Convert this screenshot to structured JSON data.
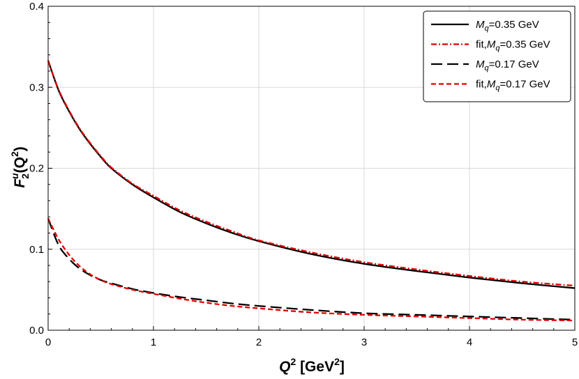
{
  "chart_data": {
    "type": "line",
    "xlabel": {
      "main": "Q",
      "sup": "2",
      "unit_open": " [GeV",
      "unit_sup": "2",
      "unit_close": "]"
    },
    "ylabel": {
      "main": "F",
      "sub": "2",
      "sup_u": "u",
      "arg_open": "(Q",
      "arg_sup": "2",
      "arg_close": ")"
    },
    "xlim": [
      0,
      5
    ],
    "ylim": [
      0,
      0.4
    ],
    "x_ticks": [
      0,
      1,
      2,
      3,
      4,
      5
    ],
    "x_tick_labels": [
      "0",
      "1",
      "2",
      "3",
      "4",
      "5"
    ],
    "y_ticks": [
      0.0,
      0.1,
      0.2,
      0.3,
      0.4
    ],
    "y_tick_labels": [
      "0.0",
      "0.1",
      "0.2",
      "0.3",
      "0.4"
    ],
    "grid": true,
    "legend_position": "top-right",
    "x": [
      0,
      0.1,
      0.2,
      0.3,
      0.4,
      0.5,
      0.6,
      0.8,
      1.0,
      1.25,
      1.5,
      1.75,
      2.0,
      2.5,
      3.0,
      3.5,
      4.0,
      4.5,
      5.0
    ],
    "series": [
      {
        "name": "M_q=0.35 GeV",
        "legend": {
          "pre": "",
          "M": "M",
          "sub": "q",
          "post": "=0.35 GeV"
        },
        "color": "#000000",
        "dash": "solid",
        "values": [
          0.333,
          0.296,
          0.27,
          0.248,
          0.23,
          0.214,
          0.2,
          0.18,
          0.164,
          0.146,
          0.132,
          0.12,
          0.11,
          0.094,
          0.082,
          0.073,
          0.065,
          0.058,
          0.052
        ]
      },
      {
        "name": "fit,M_q=0.35 GeV",
        "legend": {
          "pre": "fit,",
          "M": "M",
          "sub": "q",
          "post": "=0.35 GeV"
        },
        "color": "#e00000",
        "dash": "dashdot",
        "values": [
          0.333,
          0.297,
          0.271,
          0.249,
          0.231,
          0.215,
          0.201,
          0.181,
          0.166,
          0.148,
          0.134,
          0.122,
          0.111,
          0.096,
          0.084,
          0.075,
          0.067,
          0.06,
          0.055
        ]
      },
      {
        "name": "M_q=0.17 GeV",
        "legend": {
          "pre": "",
          "M": "M",
          "sub": "q",
          "post": "=0.17 GeV"
        },
        "color": "#000000",
        "dash": "longdash",
        "values": [
          0.138,
          0.105,
          0.088,
          0.076,
          0.068,
          0.062,
          0.058,
          0.051,
          0.046,
          0.041,
          0.037,
          0.033,
          0.03,
          0.025,
          0.021,
          0.019,
          0.017,
          0.015,
          0.013
        ]
      },
      {
        "name": "fit,M_q=0.17 GeV",
        "legend": {
          "pre": "fit,",
          "M": "M",
          "sub": "q",
          "post": "=0.17 GeV"
        },
        "color": "#e00000",
        "dash": "dashed",
        "values": [
          0.138,
          0.112,
          0.093,
          0.079,
          0.069,
          0.062,
          0.057,
          0.05,
          0.045,
          0.039,
          0.034,
          0.03,
          0.027,
          0.022,
          0.019,
          0.017,
          0.015,
          0.013,
          0.012
        ]
      }
    ]
  }
}
